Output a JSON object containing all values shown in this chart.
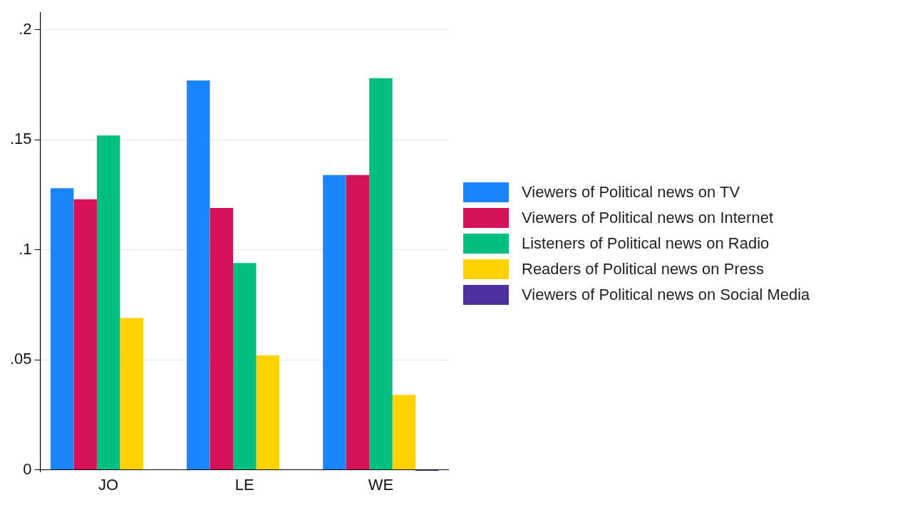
{
  "chart_data": {
    "type": "bar",
    "categories": [
      "JO",
      "LE",
      "WE"
    ],
    "series": [
      {
        "name": "Viewers of Political news on TV",
        "color": "#1a85ff",
        "values": [
          0.128,
          0.177,
          0.134
        ]
      },
      {
        "name": "Viewers of Political news on Internet",
        "color": "#d41159",
        "values": [
          0.123,
          0.119,
          0.134
        ]
      },
      {
        "name": "Listeners of Political news on Radio",
        "color": "#00bf7f",
        "values": [
          0.152,
          0.094,
          0.178
        ]
      },
      {
        "name": "Readers of Political news on Press",
        "color": "#ffd200",
        "values": [
          0.069,
          0.052,
          0.034
        ]
      },
      {
        "name": "Viewers of Political news on Social Media",
        "color": "#4d2fa0",
        "values": [
          0,
          0,
          -0.0005
        ]
      }
    ],
    "ylim": [
      -0.001,
      0.208
    ],
    "yticks": [
      {
        "value": 0,
        "label": "0"
      },
      {
        "value": 0.05,
        "label": ".05"
      },
      {
        "value": 0.1,
        "label": ".1"
      },
      {
        "value": 0.15,
        "label": ".15"
      },
      {
        "value": 0.2,
        "label": ".2"
      }
    ],
    "grid": "y",
    "legend": "right"
  }
}
